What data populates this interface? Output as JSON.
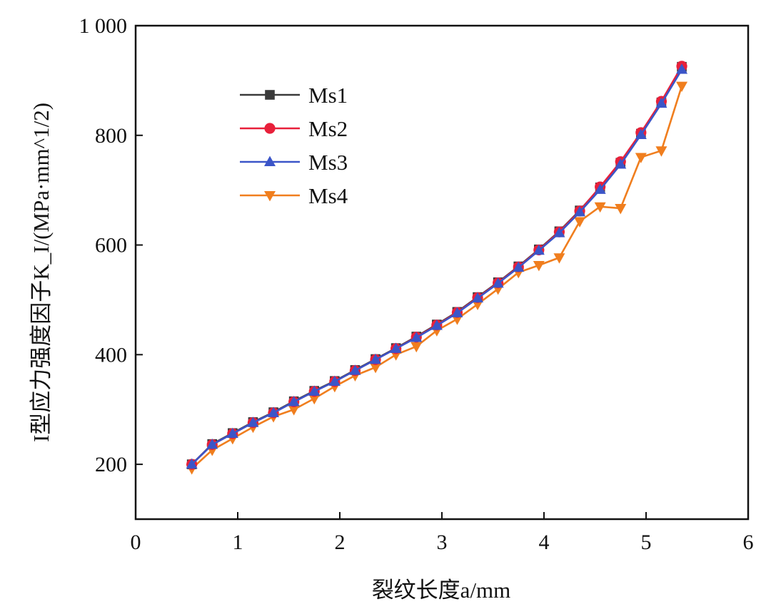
{
  "chart_data": {
    "type": "line",
    "title": "",
    "xlabel": "裂纹长度a/mm",
    "ylabel": "I型应力强度因子K_I/(MPa·mm^1/2)",
    "xlim": [
      0,
      6
    ],
    "ylim": [
      100,
      1000
    ],
    "x_ticks": [
      0,
      1,
      2,
      3,
      4,
      5,
      6
    ],
    "y_ticks": [
      200,
      400,
      600,
      800,
      1000
    ],
    "y_tick_labels": [
      "200",
      "400",
      "600",
      "800",
      "1 000"
    ],
    "grid": false,
    "legend_position": "upper-left",
    "x": [
      0.55,
      0.75,
      0.95,
      1.15,
      1.35,
      1.55,
      1.75,
      1.95,
      2.15,
      2.35,
      2.55,
      2.75,
      2.95,
      3.15,
      3.35,
      3.55,
      3.75,
      3.95,
      4.15,
      4.35,
      4.55,
      4.75,
      4.95,
      5.15,
      5.35
    ],
    "series": [
      {
        "name": "Ms1",
        "color": "#3a3a3a",
        "marker": "square",
        "values": [
          200,
          237,
          257,
          277,
          295,
          315,
          334,
          352,
          372,
          392,
          412,
          433,
          455,
          478,
          505,
          532,
          561,
          592,
          625,
          663,
          705,
          750,
          803,
          860,
          925
        ]
      },
      {
        "name": "Ms2",
        "color": "#e8203a",
        "marker": "circle",
        "values": [
          200,
          236,
          256,
          276,
          294,
          314,
          333,
          351,
          371,
          391,
          411,
          432,
          454,
          477,
          504,
          531,
          560,
          591,
          624,
          662,
          706,
          752,
          805,
          862,
          926
        ]
      },
      {
        "name": "Ms3",
        "color": "#3b55c8",
        "marker": "triangle-up",
        "values": [
          200,
          236,
          256,
          276,
          294,
          314,
          333,
          351,
          371,
          391,
          411,
          431,
          453,
          476,
          503,
          530,
          559,
          590,
          622,
          660,
          701,
          747,
          801,
          858,
          920
        ]
      },
      {
        "name": "Ms4",
        "color": "#f07e1e",
        "marker": "triangle-down",
        "values": [
          192,
          226,
          247,
          268,
          287,
          300,
          320,
          342,
          362,
          377,
          400,
          415,
          444,
          465,
          492,
          520,
          550,
          563,
          577,
          643,
          670,
          667,
          760,
          772,
          890
        ]
      }
    ]
  }
}
